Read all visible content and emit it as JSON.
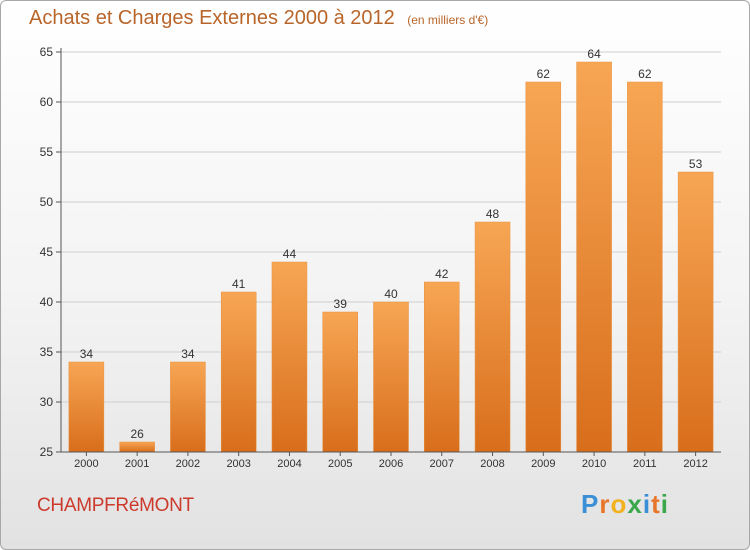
{
  "title": "Achats et Charges Externes 2000 à 2012",
  "subtitle": "(en milliers d'€)",
  "commune": "CHAMPFRéMONT",
  "logo": {
    "text": "Proxiti",
    "letter_colors": [
      "#3a8fd6",
      "#e8762a",
      "#f0b21e",
      "#3aa84a",
      "#3a8fd6",
      "#e8762a",
      "#3aa84a"
    ]
  },
  "colors": {
    "bar_top": "#f7a654",
    "bar_bottom": "#d86e1c",
    "axis": "#555555",
    "grid": "#cfcfcf",
    "text": "#333333"
  },
  "chart_data": {
    "type": "bar",
    "categories": [
      "2000",
      "2001",
      "2002",
      "2003",
      "2004",
      "2005",
      "2006",
      "2007",
      "2008",
      "2009",
      "2010",
      "2011",
      "2012"
    ],
    "values": [
      34,
      26,
      34,
      41,
      44,
      39,
      40,
      42,
      48,
      62,
      64,
      62,
      53
    ],
    "title": "Achats et Charges Externes 2000 à 2012",
    "ylim": [
      25,
      65
    ],
    "yticks": [
      25,
      30,
      35,
      40,
      45,
      50,
      55,
      60,
      65
    ],
    "grid": true,
    "legend": "none"
  }
}
